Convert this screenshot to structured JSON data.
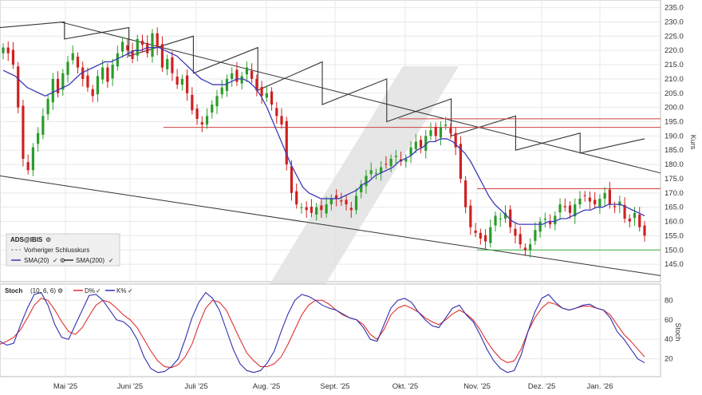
{
  "chart_data": [
    {
      "type": "candlestick",
      "symbol": "ADS@IBIS",
      "ylabel": "Kurs",
      "ylim": [
        140,
        236
      ],
      "yticks": [
        145,
        150,
        155,
        160,
        165,
        170,
        175,
        180,
        185,
        190,
        195,
        200,
        205,
        210,
        215,
        220,
        225,
        230,
        235
      ],
      "ytick_labels": [
        "145.0",
        "150.0",
        "155.0",
        "160.0",
        "165.0",
        "170.0",
        "175.0",
        "180.0",
        "185.0",
        "190.0",
        "195.0",
        "200.0",
        "205.0",
        "210.0",
        "215.0",
        "220.0",
        "225.0",
        "230.0",
        "235.0"
      ],
      "x_labels": [
        "Mai '25",
        "Juni '25",
        "Juli '25",
        "Aug. '25",
        "Sept. '25",
        "Okt. '25",
        "Nov. '25",
        "Dez. '25",
        "Jan. '26"
      ],
      "legend": [
        {
          "label": "Vorheriger Schlusskurs",
          "color": "#888888",
          "style": "dashed"
        },
        {
          "label": "SMA(20)",
          "color": "#3b3bb8"
        },
        {
          "label": "SMA(200)",
          "color": "#333333"
        }
      ],
      "close_series": {
        "name": "ADS@IBIS",
        "x_start": "2025-04-14",
        "x_end": "2026-01-23",
        "values": [
          221,
          219,
          215,
          200,
          182,
          178,
          186,
          191,
          197,
          203,
          210,
          205,
          212,
          216,
          219,
          214,
          210,
          207,
          204,
          211,
          214,
          209,
          215,
          219,
          223,
          220,
          217,
          224,
          222,
          219,
          226,
          221,
          214,
          217,
          212,
          208,
          210,
          205,
          199,
          196,
          194,
          197,
          201,
          204,
          207,
          210,
          212,
          209,
          211,
          214,
          210,
          206,
          204,
          205,
          201,
          197,
          194,
          180,
          170,
          166,
          165,
          164,
          163,
          165,
          164,
          166,
          168,
          168,
          167,
          166,
          164,
          169,
          173,
          176,
          178,
          177,
          179,
          180,
          182,
          183,
          181,
          182,
          186,
          188,
          186,
          190,
          192,
          190,
          193,
          194,
          191,
          186,
          175,
          165,
          158,
          156,
          154,
          153,
          158,
          162,
          161,
          163,
          158,
          155,
          152,
          150,
          152,
          157,
          160,
          161,
          159,
          162,
          166,
          165,
          163,
          166,
          168,
          169,
          167,
          166,
          168,
          170,
          166,
          165,
          167,
          161,
          160,
          163,
          158,
          155
        ]
      },
      "sma20": {
        "name": "SMA(20)",
        "values": [
          213,
          212,
          211,
          209,
          207,
          206,
          205,
          204,
          205,
          206,
          207,
          208,
          210,
          212,
          213,
          214,
          215,
          216,
          216,
          217,
          218,
          219,
          220,
          220,
          221,
          221,
          221,
          220,
          219,
          218,
          216,
          214,
          212,
          210,
          209,
          208,
          208,
          208,
          209,
          210,
          210,
          209,
          207,
          204,
          200,
          195,
          190,
          185,
          180,
          176,
          172,
          170,
          169,
          168,
          168,
          168,
          168,
          169,
          170,
          171,
          173,
          174,
          176,
          177,
          178,
          179,
          181,
          182,
          183,
          185,
          186,
          188,
          188,
          189,
          189,
          188,
          186,
          184,
          181,
          177,
          173,
          169,
          166,
          164,
          162,
          160,
          159,
          159,
          159,
          159,
          159,
          160,
          160,
          161,
          161,
          162,
          163,
          164,
          164,
          165,
          165,
          166,
          166,
          166,
          165,
          164,
          163,
          162
        ]
      },
      "sma200": {
        "name": "SMA(200)",
        "values": [
          [
            228,
            230
          ],
          [
            224,
            228
          ],
          [
            218,
            225
          ],
          [
            212,
            221
          ],
          [
            206,
            216
          ],
          [
            201,
            210
          ],
          [
            195,
            203
          ],
          [
            190,
            197
          ],
          [
            185,
            191
          ],
          [
            184,
            189
          ]
        ]
      },
      "trend_lines": [
        {
          "from": [
            75,
            230
          ],
          "to": [
            825,
            177
          ]
        },
        {
          "from": [
            0,
            176
          ],
          "to": [
            825,
            141
          ]
        }
      ],
      "horizontal_levels": [
        {
          "value": 193,
          "color": "#d04040"
        },
        {
          "value": 196,
          "color": "#d04040"
        },
        {
          "value": 171.5,
          "color": "#d04040"
        },
        {
          "value": 150,
          "color": "#3cb043"
        }
      ]
    },
    {
      "type": "line",
      "title": "Stoch",
      "params": "(10, 6, 6)",
      "ylabel": "Stoch",
      "ylim": [
        5,
        95
      ],
      "yticks": [
        20,
        40,
        60,
        80
      ],
      "series": [
        {
          "name": "D%",
          "color": "#e03030",
          "values": [
            35,
            38,
            42,
            50,
            62,
            75,
            82,
            80,
            70,
            58,
            48,
            45,
            52,
            64,
            75,
            80,
            78,
            72,
            65,
            60,
            52,
            40,
            28,
            18,
            12,
            11,
            14,
            22,
            35,
            55,
            72,
            80,
            78,
            70,
            55,
            40,
            26,
            18,
            12,
            12,
            15,
            22,
            35,
            50,
            65,
            75,
            80,
            80,
            76,
            70,
            65,
            62,
            60,
            55,
            45,
            40,
            50,
            65,
            72,
            75,
            72,
            68,
            62,
            58,
            55,
            60,
            66,
            70,
            66,
            60,
            50,
            38,
            28,
            20,
            16,
            18,
            30,
            48,
            62,
            72,
            78,
            76,
            72,
            70,
            72,
            74,
            74,
            72,
            70,
            65,
            55,
            45,
            38,
            30,
            22
          ]
        },
        {
          "name": "K%",
          "color": "#3030b0",
          "values": [
            38,
            34,
            36,
            55,
            72,
            86,
            88,
            75,
            55,
            42,
            40,
            55,
            70,
            85,
            86,
            80,
            70,
            60,
            58,
            52,
            40,
            22,
            10,
            6,
            7,
            12,
            20,
            40,
            62,
            78,
            88,
            82,
            70,
            50,
            30,
            15,
            8,
            6,
            8,
            16,
            28,
            48,
            66,
            80,
            86,
            84,
            80,
            75,
            72,
            70,
            66,
            62,
            60,
            52,
            40,
            38,
            55,
            72,
            80,
            82,
            78,
            68,
            60,
            54,
            52,
            62,
            72,
            75,
            65,
            58,
            45,
            30,
            18,
            10,
            6,
            8,
            24,
            48,
            68,
            82,
            86,
            78,
            72,
            70,
            72,
            75,
            76,
            72,
            70,
            62,
            48,
            40,
            30,
            20,
            16
          ]
        }
      ]
    }
  ]
}
